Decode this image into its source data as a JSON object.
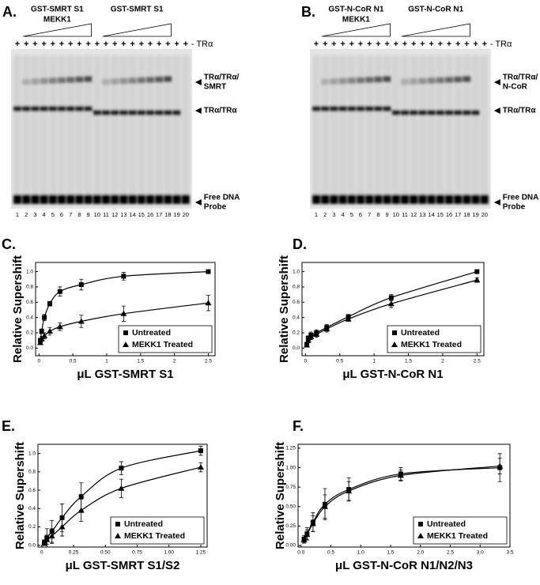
{
  "gels": [
    {
      "panel_label": "A.",
      "group_labels": [
        [
          "GST-SMRT S1",
          "MEKK1"
        ],
        [
          "GST-SMRT S1"
        ]
      ],
      "lane_signs": [
        "+",
        "+",
        "+",
        "+",
        "+",
        "+",
        "+",
        "+",
        "+",
        "+",
        "+",
        "+",
        "+",
        "+",
        "+",
        "+",
        "+",
        "+",
        "+",
        "+"
      ],
      "signs_label": "- TRα",
      "band_labels": [
        [
          "TRα/TRα/",
          "SMRT"
        ],
        [
          "TRα/TRα"
        ],
        [
          "Free DNA",
          "Probe"
        ]
      ],
      "lanes": [
        "1",
        "2",
        "3",
        "4",
        "5",
        "6",
        "7",
        "8",
        "9",
        "10",
        "11",
        "12",
        "13",
        "14",
        "15",
        "16",
        "17",
        "18",
        "19",
        "20"
      ]
    },
    {
      "panel_label": "B.",
      "group_labels": [
        [
          "GST-N-CoR N1",
          "MEKK1"
        ],
        [
          "GST-N-CoR N1"
        ]
      ],
      "lane_signs": [
        "+",
        "+",
        "+",
        "+",
        "+",
        "+",
        "+",
        "+",
        "+",
        "+",
        "+",
        "+",
        "+",
        "+",
        "+",
        "+",
        "+",
        "+",
        "+",
        "+"
      ],
      "signs_label": "- TRα",
      "band_labels": [
        [
          "TRα/TRα/",
          "N-CoR"
        ],
        [
          "TRα/TRα"
        ],
        [
          "Free DNA",
          "Probe"
        ]
      ],
      "lanes": [
        "1",
        "2",
        "3",
        "4",
        "5",
        "6",
        "7",
        "8",
        "9",
        "10",
        "11",
        "12",
        "13",
        "14",
        "15",
        "16",
        "17",
        "18",
        "19",
        "20"
      ]
    }
  ],
  "chart_data": [
    {
      "type": "scatter",
      "panel_label": "C.",
      "xlabel": "μL GST-SMRT S1",
      "ylabel": "Relative Supershift",
      "xlim": [
        -0.05,
        2.6
      ],
      "ylim": [
        -0.1,
        1.12
      ],
      "xticks": [
        0,
        0.5,
        1,
        1.5,
        2,
        2.5
      ],
      "yticks": [
        {
          "value": 0,
          "label": "0.0"
        },
        0.2,
        0.4,
        0.6,
        0.8,
        {
          "value": 1,
          "label": "1.0"
        }
      ],
      "legend": "lower right",
      "series": [
        {
          "name": "Untreated",
          "marker": "square",
          "color": "#000000",
          "x": [
            0.02,
            0.04,
            0.08,
            0.16,
            0.31,
            0.625,
            1.25,
            2.5
          ],
          "values": [
            0.1,
            0.22,
            0.4,
            0.58,
            0.74,
            0.83,
            0.94,
            1.0
          ],
          "errors": [
            0.03,
            0.03,
            0.04,
            0.03,
            0.06,
            0.07,
            0.05,
            0
          ]
        },
        {
          "name": "MEKK1 Treated",
          "marker": "triangle",
          "color": "#000000",
          "x": [
            0.02,
            0.04,
            0.08,
            0.16,
            0.31,
            0.625,
            1.25,
            2.5
          ],
          "values": [
            0.07,
            0.12,
            0.16,
            0.22,
            0.28,
            0.35,
            0.45,
            0.59
          ],
          "errors": [
            0.02,
            0.03,
            0.04,
            0.05,
            0.05,
            0.08,
            0.1,
            0.1
          ]
        }
      ]
    },
    {
      "type": "scatter",
      "panel_label": "D.",
      "xlabel": "μL GST-N-CoR N1",
      "ylabel": "Relative Supershift",
      "xlim": [
        -0.05,
        2.6
      ],
      "ylim": [
        -0.1,
        1.12
      ],
      "xticks": [
        0,
        0.5,
        1,
        1.5,
        2,
        2.5
      ],
      "yticks": [
        {
          "value": 0,
          "label": "0.0"
        },
        0.2,
        0.4,
        0.6,
        0.8,
        {
          "value": 1,
          "label": "1.0"
        }
      ],
      "legend": "lower right",
      "series": [
        {
          "name": "Untreated",
          "marker": "square",
          "color": "#000000",
          "x": [
            0.02,
            0.04,
            0.08,
            0.16,
            0.31,
            0.625,
            1.25,
            2.5
          ],
          "values": [
            0.05,
            0.13,
            0.17,
            0.2,
            0.27,
            0.41,
            0.66,
            1.0
          ],
          "errors": [
            0.02,
            0.03,
            0.04,
            0.04,
            0.04,
            0.03,
            0.04,
            0
          ]
        },
        {
          "name": "MEKK1 Treated",
          "marker": "triangle",
          "color": "#000000",
          "x": [
            0.02,
            0.04,
            0.08,
            0.16,
            0.31,
            0.625,
            1.25,
            2.5
          ],
          "values": [
            0.04,
            0.1,
            0.15,
            0.18,
            0.25,
            0.38,
            0.58,
            0.89
          ],
          "errors": [
            0.02,
            0.03,
            0.04,
            0.04,
            0.04,
            0.03,
            0.05,
            0.03
          ]
        }
      ]
    },
    {
      "type": "scatter",
      "panel_label": "E.",
      "xlabel": "μL GST-SMRT S1/S2",
      "ylabel": "Relative Supershift",
      "xlim": [
        -0.03,
        1.3
      ],
      "ylim": [
        -0.02,
        1.1
      ],
      "xticks": [
        0,
        0.25,
        {
          "value": 0.5,
          "label": "0.50"
        },
        0.75,
        {
          "value": 1,
          "label": "1.00"
        },
        1.25
      ],
      "yticks": [
        {
          "value": 0,
          "label": "0.0"
        },
        0.2,
        0.4,
        0.6,
        0.8,
        {
          "value": 1,
          "label": "1.0"
        }
      ],
      "legend": "lower right",
      "series": [
        {
          "name": "Untreated",
          "marker": "square",
          "color": "#000000",
          "x": [
            0.02,
            0.04,
            0.08,
            0.16,
            0.31,
            0.625,
            1.25
          ],
          "values": [
            0.03,
            0.08,
            0.15,
            0.3,
            0.53,
            0.84,
            1.03
          ],
          "errors": [
            0.03,
            0.1,
            0.12,
            0.15,
            0.15,
            0.07,
            0.05
          ]
        },
        {
          "name": "MEKK1 Treated",
          "marker": "triangle",
          "color": "#000000",
          "x": [
            0.02,
            0.04,
            0.08,
            0.16,
            0.31,
            0.625,
            1.25
          ],
          "values": [
            0.02,
            0.06,
            0.1,
            0.2,
            0.38,
            0.62,
            0.85
          ],
          "errors": [
            0.02,
            0.05,
            0.08,
            0.1,
            0.12,
            0.1,
            0.05
          ]
        }
      ]
    },
    {
      "type": "scatter",
      "panel_label": "F.",
      "xlabel": "μL GST-N-CoR N1/N2/N3",
      "ylabel": "Relative Supershift",
      "xlim": [
        -0.05,
        3.5
      ],
      "ylim": [
        -0.02,
        1.3
      ],
      "xticks": [
        {
          "value": 0,
          "label": "0.0"
        },
        0.5,
        {
          "value": 1,
          "label": "1.0"
        },
        1.5,
        {
          "value": 2,
          "label": "2.0"
        },
        2.5,
        {
          "value": 3,
          "label": "3.0"
        },
        3.5
      ],
      "yticks": [
        {
          "value": 0,
          "label": "0.00"
        },
        0.25,
        {
          "value": 0.5,
          "label": "0.50"
        },
        0.75,
        {
          "value": 1,
          "label": "1.00"
        },
        1.25
      ],
      "legend": "lower right",
      "series": [
        {
          "name": "Untreated",
          "marker": "square",
          "color": "#000000",
          "x": [
            0.05,
            0.1,
            0.2,
            0.4,
            0.8,
            1.67,
            3.33
          ],
          "values": [
            0.08,
            0.15,
            0.3,
            0.53,
            0.72,
            0.92,
            1.0
          ],
          "errors": [
            0.05,
            0.08,
            0.12,
            0.2,
            0.15,
            0.08,
            0.18
          ]
        },
        {
          "name": "MEKK1 Treated",
          "marker": "triangle",
          "color": "#000000",
          "x": [
            0.05,
            0.1,
            0.2,
            0.4,
            0.8,
            1.67,
            3.33
          ],
          "values": [
            0.07,
            0.14,
            0.28,
            0.5,
            0.7,
            0.9,
            1.02
          ],
          "errors": [
            0.04,
            0.06,
            0.1,
            0.15,
            0.12,
            0.07,
            0.1
          ]
        }
      ]
    }
  ]
}
